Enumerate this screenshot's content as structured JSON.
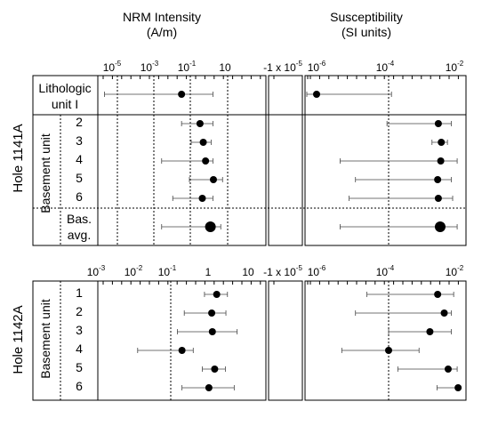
{
  "headers": {
    "nrm_title": "NRM Intensity",
    "nrm_unit": "(A/m)",
    "sus_title": "Susceptibility",
    "sus_unit": "(SI units)"
  },
  "chart_data": [
    {
      "type": "scatter",
      "panel": "Hole 1141A",
      "hole_label": "Hole 1141A",
      "group_label": "Basement unit",
      "row_labels": [
        [
          "Lithologic",
          "unit I"
        ],
        [
          "2"
        ],
        [
          "3"
        ],
        [
          "4"
        ],
        [
          "5"
        ],
        [
          "6"
        ],
        [
          "Bas.",
          "avg."
        ]
      ],
      "nrm_ticks": [
        "10",
        "10",
        "10",
        "10"
      ],
      "nrm_tick_exponents": [
        "-5",
        "-3",
        "-1",
        ""
      ],
      "sus_neg_tick": "-1 x 10",
      "sus_neg_tick_exponent": "-5",
      "sus_ticks": [
        "10",
        "10",
        "10"
      ],
      "sus_tick_exponents": [
        "-6",
        "-4",
        "-2"
      ],
      "nrm_scale": "log",
      "susceptibility_scale": "log",
      "nrm": [
        {
          "row": "Lithologic unit I",
          "mean": 0.03,
          "min": 2e-06,
          "max": 1.5
        },
        {
          "row": "2",
          "mean": 0.3,
          "min": 0.03,
          "max": 1.5
        },
        {
          "row": "3",
          "mean": 0.45,
          "min": 0.1,
          "max": 1.2
        },
        {
          "row": "4",
          "mean": 0.6,
          "min": 0.0025,
          "max": 1.5
        },
        {
          "row": "5",
          "mean": 1.6,
          "min": 0.08,
          "max": 5
        },
        {
          "row": "6",
          "mean": 0.4,
          "min": 0.01,
          "max": 1.5
        },
        {
          "row": "Bas. avg.",
          "mean": 1.1,
          "min": 0.0025,
          "max": 4
        }
      ],
      "susceptibility": [
        {
          "row": "Lithologic unit I",
          "mean": 1e-06,
          "min": 3e-07,
          "max": 0.00012
        },
        {
          "row": "2",
          "mean": 0.0024,
          "min": 9e-05,
          "max": 0.0055
        },
        {
          "row": "3",
          "mean": 0.0029,
          "min": 0.0016,
          "max": 0.0043
        },
        {
          "row": "4",
          "mean": 0.0028,
          "min": 4.5e-06,
          "max": 0.008
        },
        {
          "row": "5",
          "mean": 0.0023,
          "min": 1.2e-05,
          "max": 0.0055
        },
        {
          "row": "6",
          "mean": 0.0024,
          "min": 8e-06,
          "max": 0.006
        },
        {
          "row": "Bas. avg.",
          "mean": 0.0027,
          "min": 4.5e-06,
          "max": 0.008
        }
      ]
    },
    {
      "type": "scatter",
      "panel": "Hole 1142A",
      "hole_label": "Hole 1142A",
      "group_label": "Basement unit",
      "row_labels": [
        [
          "1"
        ],
        [
          "2"
        ],
        [
          "3"
        ],
        [
          "4"
        ],
        [
          "5"
        ],
        [
          "6"
        ]
      ],
      "nrm_ticks": [
        "10",
        "10",
        "10",
        "1",
        "10"
      ],
      "nrm_tick_exponents": [
        "-3",
        "-2",
        "-1",
        "",
        ""
      ],
      "sus_neg_tick": "-1 x 10",
      "sus_neg_tick_exponent": "-5",
      "sus_ticks": [
        "10",
        "10",
        "10"
      ],
      "sus_tick_exponents": [
        "-6",
        "-4",
        "-2"
      ],
      "nrm_scale": "log",
      "susceptibility_scale": "log",
      "nrm": [
        {
          "row": "1",
          "mean": 1.7,
          "min": 0.8,
          "max": 3.3
        },
        {
          "row": "2",
          "mean": 1.25,
          "min": 0.23,
          "max": 3.0
        },
        {
          "row": "3",
          "mean": 1.3,
          "min": 0.15,
          "max": 6.0
        },
        {
          "row": "4",
          "mean": 0.2,
          "min": 0.013,
          "max": 0.4
        },
        {
          "row": "5",
          "mean": 1.5,
          "min": 0.7,
          "max": 2.9
        },
        {
          "row": "6",
          "mean": 1.05,
          "min": 0.2,
          "max": 5.0
        }
      ],
      "susceptibility": [
        {
          "row": "1",
          "mean": 0.0023,
          "min": 2.5e-05,
          "max": 0.0064
        },
        {
          "row": "2",
          "mean": 0.0035,
          "min": 1.2e-05,
          "max": 0.0055
        },
        {
          "row": "3",
          "mean": 0.0014,
          "min": 0.0001,
          "max": 0.0055
        },
        {
          "row": "4",
          "mean": 0.0001,
          "min": 5e-06,
          "max": 0.0007
        },
        {
          "row": "5",
          "mean": 0.0045,
          "min": 0.00018,
          "max": 0.008
        },
        {
          "row": "6",
          "mean": 0.0085,
          "min": 0.0022,
          "max": 0.0095
        }
      ]
    }
  ]
}
